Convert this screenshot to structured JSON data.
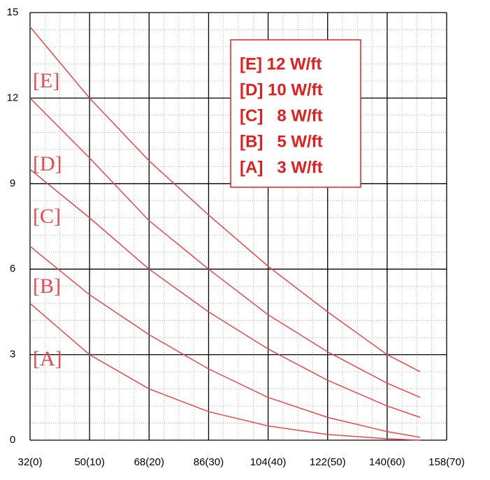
{
  "chart_data": {
    "type": "line",
    "xlim": [
      32,
      158
    ],
    "ylim": [
      0,
      15
    ],
    "xticks": [
      {
        "value": 32,
        "label": "32(0)"
      },
      {
        "value": 50,
        "label": "50(10)"
      },
      {
        "value": 68,
        "label": "68(20)"
      },
      {
        "value": 86,
        "label": "86(30)"
      },
      {
        "value": 104,
        "label": "104(40)"
      },
      {
        "value": 122,
        "label": "122(50)"
      },
      {
        "value": 140,
        "label": "140(60)"
      },
      {
        "value": 158,
        "label": "158(70)"
      }
    ],
    "yticks": [
      0,
      3,
      6,
      9,
      12,
      15
    ],
    "grid": true,
    "x": [
      32,
      50,
      68,
      86,
      104,
      122,
      140,
      150
    ],
    "series": [
      {
        "name": "[E] 12 W/ft",
        "color": "#e8474c",
        "values": [
          14.5,
          12.0,
          9.8,
          7.9,
          6.1,
          4.5,
          3.0,
          2.4
        ]
      },
      {
        "name": "[D] 10 W/ft",
        "color": "#e8474c",
        "values": [
          12.0,
          9.9,
          7.7,
          6.0,
          4.4,
          3.1,
          2.0,
          1.5
        ]
      },
      {
        "name": "[C]   8 W/ft",
        "color": "#e8474c",
        "values": [
          9.5,
          7.8,
          6.0,
          4.5,
          3.2,
          2.1,
          1.2,
          0.8
        ]
      },
      {
        "name": "[B]   5 W/ft",
        "color": "#e8474c",
        "values": [
          6.8,
          5.1,
          3.7,
          2.5,
          1.5,
          0.8,
          0.3,
          0.1
        ]
      },
      {
        "name": "[A]   3 W/ft",
        "color": "#e8474c",
        "values": [
          4.8,
          3.0,
          1.8,
          1.0,
          0.5,
          0.2,
          0.05,
          0.0
        ]
      }
    ],
    "annotations": [
      "[E]",
      "[D]",
      "[C]",
      "[B]",
      "[A]"
    ],
    "legend_text_color": "#e0201f"
  }
}
